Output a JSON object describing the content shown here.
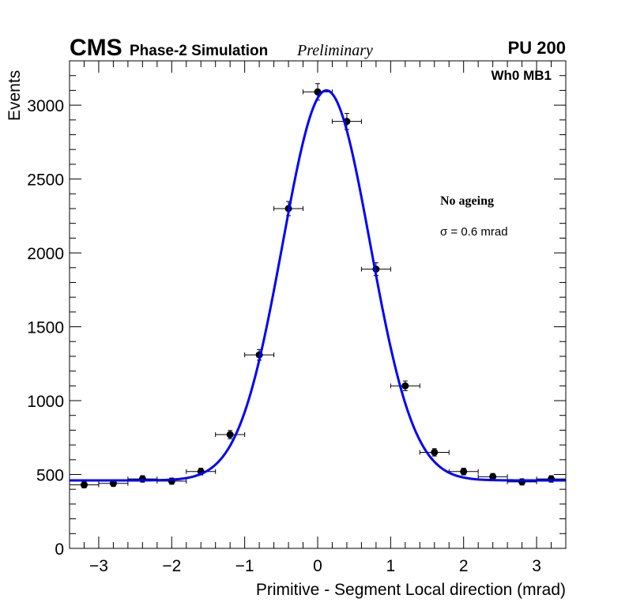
{
  "header": {
    "experiment": "CMS",
    "subtitle": "Phase-2 Simulation",
    "status": "Preliminary",
    "pileup": "PU 200"
  },
  "chart_data": {
    "type": "scatter",
    "title": "",
    "xlabel": "Primitive - Segment Local direction (mrad)",
    "ylabel": "Events",
    "xlim": [
      -3.4,
      3.4
    ],
    "ylim": [
      0,
      3300
    ],
    "xticks": [
      -3,
      -2,
      -1,
      0,
      1,
      2,
      3
    ],
    "xtick_labels": [
      "−3",
      "−2",
      "−1",
      "0",
      "1",
      "2",
      "3"
    ],
    "yticks": [
      0,
      500,
      1000,
      1500,
      2000,
      2500,
      3000
    ],
    "ytick_labels": [
      "0",
      "500",
      "1000",
      "1500",
      "2000",
      "2500",
      "3000"
    ],
    "grid": false,
    "annotations": {
      "region": "Wh0 MB1",
      "condition": "No ageing",
      "resolution": "σ = 0.6 mrad"
    },
    "series": [
      {
        "name": "data",
        "x": [
          -3.2,
          -2.8,
          -2.4,
          -2.0,
          -1.6,
          -1.2,
          -0.8,
          -0.4,
          0.0,
          0.4,
          0.8,
          1.2,
          1.6,
          2.0,
          2.4,
          2.8,
          3.2
        ],
        "y": [
          430,
          440,
          470,
          455,
          520,
          770,
          1310,
          2300,
          3090,
          2890,
          1890,
          1100,
          650,
          520,
          485,
          450,
          470
        ],
        "x_err": [
          0.2,
          0.2,
          0.2,
          0.2,
          0.2,
          0.2,
          0.2,
          0.2,
          0.2,
          0.2,
          0.2,
          0.2,
          0.2,
          0.2,
          0.2,
          0.2,
          0.2
        ],
        "y_err": [
          21,
          21,
          22,
          21,
          23,
          28,
          36,
          48,
          56,
          54,
          43,
          33,
          25,
          23,
          22,
          21,
          22
        ]
      },
      {
        "name": "fit",
        "function": "gaussian + constant",
        "constant": 460,
        "amplitude": 2640,
        "mean": 0.12,
        "sigma": 0.6,
        "color": "#0000ff"
      }
    ]
  }
}
